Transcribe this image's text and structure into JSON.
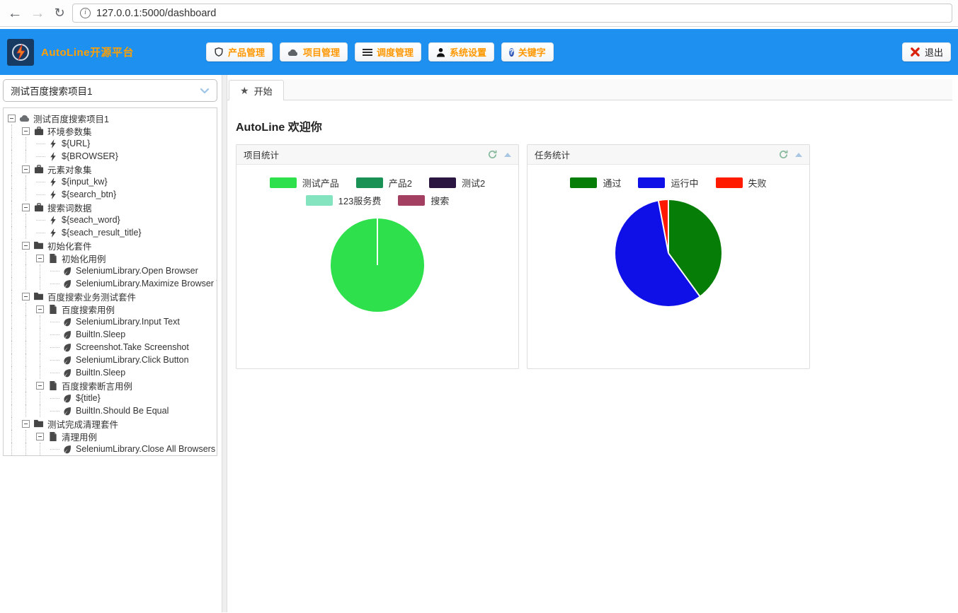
{
  "browser": {
    "url": "127.0.0.1:5000/dashboard"
  },
  "colors": {
    "header_bg": "#1e90f0",
    "brand_text": "#ffa000",
    "nav_text": "#ff9800",
    "logout_x": "#d9230f"
  },
  "header": {
    "brand": "AutoLine开源平台",
    "nav": [
      {
        "label": "产品管理",
        "icon": "shield-icon"
      },
      {
        "label": "项目管理",
        "icon": "cloud-icon"
      },
      {
        "label": "调度管理",
        "icon": "list-icon"
      },
      {
        "label": "系统设置",
        "icon": "user-icon"
      },
      {
        "label": "关键字",
        "icon": "question-icon"
      }
    ],
    "logout_label": "退出"
  },
  "sidebar": {
    "project_select_value": "测试百度搜索项目1",
    "tree": [
      {
        "label": "测试百度搜索项目1",
        "icon": "cloud",
        "level": 0,
        "parent": true
      },
      {
        "label": "环境参数集",
        "icon": "briefcase",
        "level": 1,
        "parent": true
      },
      {
        "label": "${URL}",
        "icon": "bolt",
        "level": 2,
        "parent": false
      },
      {
        "label": "${BROWSER}",
        "icon": "bolt",
        "level": 2,
        "parent": false
      },
      {
        "label": "元素对象集",
        "icon": "briefcase",
        "level": 1,
        "parent": true
      },
      {
        "label": "${input_kw}",
        "icon": "bolt",
        "level": 2,
        "parent": false
      },
      {
        "label": "${search_btn}",
        "icon": "bolt",
        "level": 2,
        "parent": false
      },
      {
        "label": "搜索词数据",
        "icon": "briefcase",
        "level": 1,
        "parent": true
      },
      {
        "label": "${seach_word}",
        "icon": "bolt",
        "level": 2,
        "parent": false
      },
      {
        "label": "${seach_result_title}",
        "icon": "bolt",
        "level": 2,
        "parent": false
      },
      {
        "label": "初始化套件",
        "icon": "folder",
        "level": 1,
        "parent": true
      },
      {
        "label": "初始化用例",
        "icon": "file",
        "level": 2,
        "parent": true
      },
      {
        "label": "SeleniumLibrary.Open Browser",
        "icon": "leaf",
        "level": 3,
        "parent": false
      },
      {
        "label": "SeleniumLibrary.Maximize Browser Wi",
        "icon": "leaf",
        "level": 3,
        "parent": false
      },
      {
        "label": "百度搜索业务测试套件",
        "icon": "folder",
        "level": 1,
        "parent": true
      },
      {
        "label": "百度搜索用例",
        "icon": "file",
        "level": 2,
        "parent": true
      },
      {
        "label": "SeleniumLibrary.Input Text",
        "icon": "leaf",
        "level": 3,
        "parent": false
      },
      {
        "label": "BuiltIn.Sleep",
        "icon": "leaf",
        "level": 3,
        "parent": false
      },
      {
        "label": "Screenshot.Take Screenshot",
        "icon": "leaf",
        "level": 3,
        "parent": false
      },
      {
        "label": "SeleniumLibrary.Click Button",
        "icon": "leaf",
        "level": 3,
        "parent": false
      },
      {
        "label": "BuiltIn.Sleep",
        "icon": "leaf",
        "level": 3,
        "parent": false
      },
      {
        "label": "百度搜索断言用例",
        "icon": "file",
        "level": 2,
        "parent": true
      },
      {
        "label": "${title}",
        "icon": "leaf",
        "level": 3,
        "parent": false
      },
      {
        "label": "BuiltIn.Should Be Equal",
        "icon": "leaf",
        "level": 3,
        "parent": false
      },
      {
        "label": "测试完成清理套件",
        "icon": "folder",
        "level": 1,
        "parent": true
      },
      {
        "label": "清理用例",
        "icon": "file",
        "level": 2,
        "parent": true
      },
      {
        "label": "SeleniumLibrary.Close All Browsers",
        "icon": "leaf",
        "level": 3,
        "parent": false
      }
    ]
  },
  "main": {
    "tab_label": "开始",
    "welcome_title": "AutoLine 欢迎你"
  },
  "chart_data": [
    {
      "type": "pie",
      "title": "项目统计",
      "labels": [
        "测试产品",
        "产品2",
        "测试2",
        "123服务费",
        "搜索"
      ],
      "values": [
        100,
        0,
        0,
        0,
        0
      ],
      "colors": [
        "#2ee04c",
        "#1a9155",
        "#2a1640",
        "#84e4c0",
        "#a33f61"
      ],
      "legend_position": "top"
    },
    {
      "type": "pie",
      "title": "任务统计",
      "labels": [
        "通过",
        "运行中",
        "失败"
      ],
      "values": [
        40,
        57,
        3
      ],
      "colors": [
        "#067d06",
        "#0f0fe8",
        "#ff1a00"
      ],
      "legend_position": "top"
    }
  ]
}
